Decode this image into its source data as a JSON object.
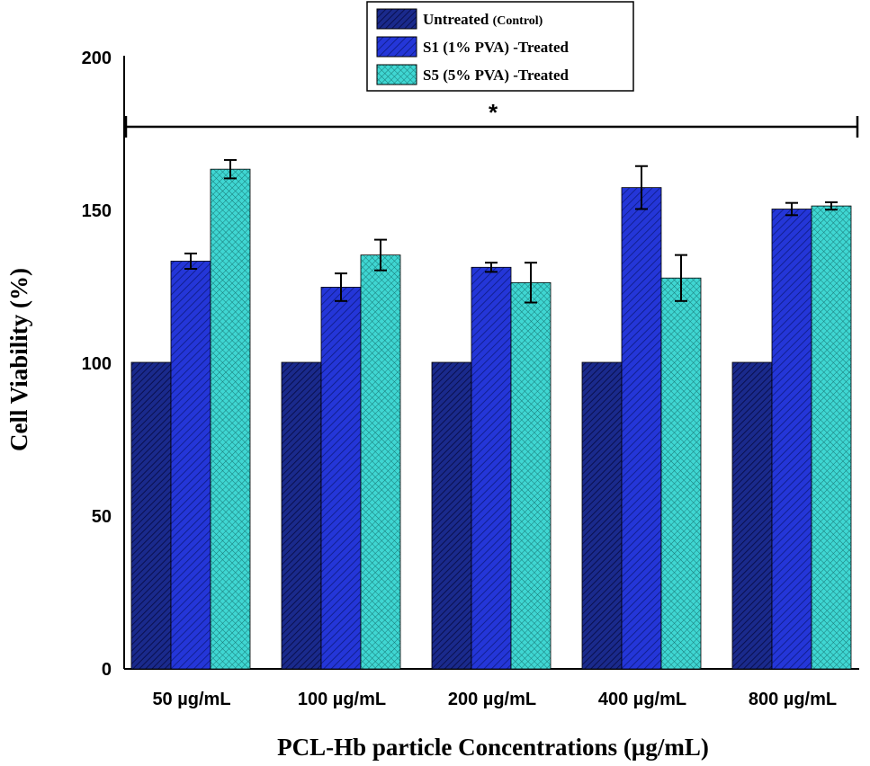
{
  "chart_data": {
    "type": "bar",
    "title": "",
    "xlabel": "PCL-Hb particle Concentrations (µg/mL)",
    "ylabel": "Cell Viability (%)",
    "ylim": [
      0,
      200
    ],
    "yticks": [
      "0",
      "50",
      "100",
      "150",
      "200"
    ],
    "categories": [
      "50 µg/mL",
      "100 µg/mL",
      "200 µg/mL",
      "400 µg/mL",
      "800 µg/mL"
    ],
    "series": [
      {
        "name": "Untreated",
        "name_suffix": "(Control)",
        "values": [
          100,
          100,
          100,
          100,
          100
        ],
        "errors": [
          0,
          0,
          0,
          0,
          0
        ],
        "color": "#1a2a8c",
        "pattern": "hatch-dense"
      },
      {
        "name": "S1 (1% PVA) -Treated",
        "name_suffix": "",
        "values": [
          133,
          124.5,
          131,
          157,
          150
        ],
        "errors": [
          2.5,
          4.5,
          1.5,
          7,
          2
        ],
        "color": "#2436d8",
        "pattern": "hatch"
      },
      {
        "name": "S5 (5% PVA) -Treated",
        "name_suffix": "",
        "values": [
          163,
          135,
          126,
          127.5,
          151
        ],
        "errors": [
          3,
          5,
          6.5,
          7.5,
          1.2
        ],
        "color": "#3fd6d2",
        "pattern": "crosshatch"
      }
    ],
    "legend_position": "top-center",
    "significance": {
      "label": "*"
    }
  }
}
